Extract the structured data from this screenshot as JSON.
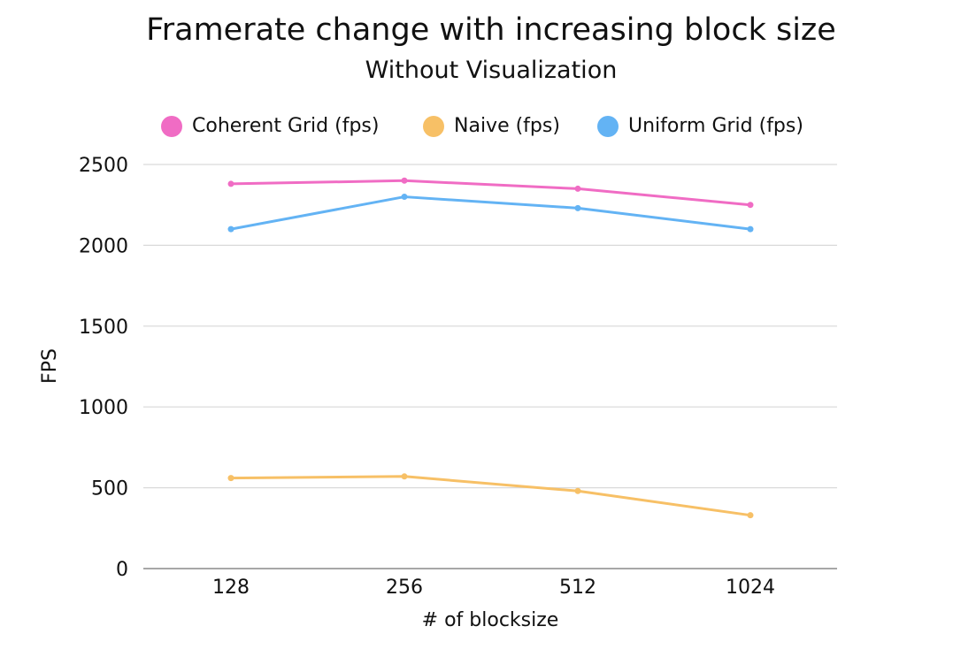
{
  "chart_data": {
    "type": "line",
    "title": "Framerate change with increasing block size",
    "subtitle": "Without Visualization",
    "xlabel": "# of blocksize",
    "ylabel": "FPS",
    "categories": [
      "128",
      "256",
      "512",
      "1024"
    ],
    "ylim": [
      0,
      2500
    ],
    "yticks": [
      0,
      500,
      1000,
      1500,
      2000,
      2500
    ],
    "grid": true,
    "legend_position": "top",
    "series": [
      {
        "name": "Coherent Grid (fps)",
        "color": "#f06cc4",
        "values": [
          2380,
          2400,
          2350,
          2250
        ]
      },
      {
        "name": "Naive (fps)",
        "color": "#f7c066",
        "values": [
          560,
          570,
          480,
          330
        ]
      },
      {
        "name": "Uniform Grid (fps)",
        "color": "#63b3f4",
        "values": [
          2100,
          2300,
          2230,
          2100
        ]
      }
    ]
  }
}
